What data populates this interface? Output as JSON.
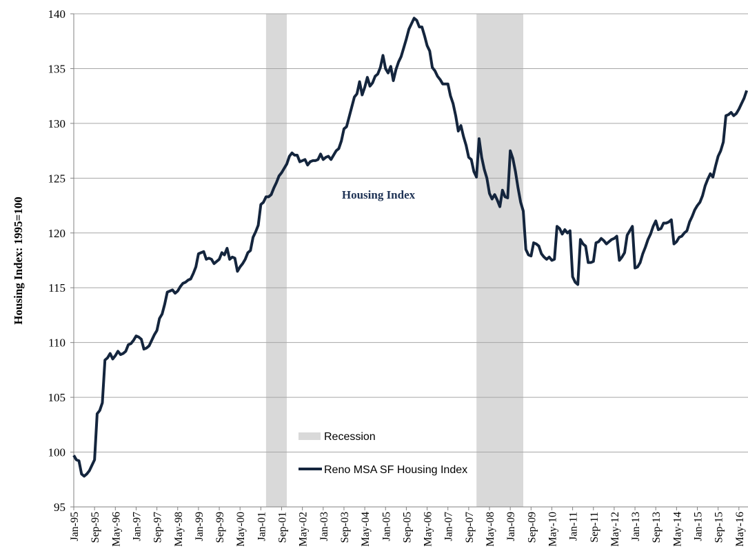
{
  "chart_data": {
    "type": "line",
    "ylabel": "Housing Index: 1995=100",
    "annotation": "Housing Index",
    "categories": [
      "Jan-95",
      null,
      null,
      null,
      null,
      null,
      null,
      null,
      "Sep-95",
      null,
      null,
      null,
      null,
      null,
      null,
      null,
      "May-96",
      null,
      null,
      null,
      null,
      null,
      null,
      null,
      "Jan-97",
      null,
      null,
      null,
      null,
      null,
      null,
      null,
      "Sep-97",
      null,
      null,
      null,
      null,
      null,
      null,
      null,
      "May-98",
      null,
      null,
      null,
      null,
      null,
      null,
      null,
      "Jan-99",
      null,
      null,
      null,
      null,
      null,
      null,
      null,
      "Sep-99",
      null,
      null,
      null,
      null,
      null,
      null,
      null,
      "May-00",
      null,
      null,
      null,
      null,
      null,
      null,
      null,
      "Jan-01",
      null,
      null,
      null,
      null,
      null,
      null,
      null,
      "Sep-01",
      null,
      null,
      null,
      null,
      null,
      null,
      null,
      "May-02",
      null,
      null,
      null,
      null,
      null,
      null,
      null,
      "Jan-03",
      null,
      null,
      null,
      null,
      null,
      null,
      null,
      "Sep-03",
      null,
      null,
      null,
      null,
      null,
      null,
      null,
      "May-04",
      null,
      null,
      null,
      null,
      null,
      null,
      null,
      "Jan-05",
      null,
      null,
      null,
      null,
      null,
      null,
      null,
      "Sep-05",
      null,
      null,
      null,
      null,
      null,
      null,
      null,
      "May-06",
      null,
      null,
      null,
      null,
      null,
      null,
      null,
      "Jan-07",
      null,
      null,
      null,
      null,
      null,
      null,
      null,
      "Sep-07",
      null,
      null,
      null,
      null,
      null,
      null,
      null,
      "May-08",
      null,
      null,
      null,
      null,
      null,
      null,
      null,
      "Jan-09",
      null,
      null,
      null,
      null,
      null,
      null,
      null,
      "Sep-09",
      null,
      null,
      null,
      null,
      null,
      null,
      null,
      "May-10",
      null,
      null,
      null,
      null,
      null,
      null,
      null,
      "Jan-11",
      null,
      null,
      null,
      null,
      null,
      null,
      null,
      "Sep-11",
      null,
      null,
      null,
      null,
      null,
      null,
      null,
      "May-12",
      null,
      null,
      null,
      null,
      null,
      null,
      null,
      "Jan-13",
      null,
      null,
      null,
      null,
      null,
      null,
      null,
      "Sep-13",
      null,
      null,
      null,
      null,
      null,
      null,
      null,
      "May-14",
      null,
      null,
      null,
      null,
      null,
      null,
      null,
      "Jan-15",
      null,
      null,
      null,
      null,
      null,
      null,
      null,
      "Sep-15",
      null,
      null,
      null,
      null,
      null,
      null,
      null,
      "May-16",
      null,
      null,
      null
    ],
    "series": [
      {
        "name": "Reno MSA SF Housing Index",
        "color": "#14253d",
        "values": [
          99.7,
          99.3,
          99.2,
          98.0,
          97.8,
          98.0,
          98.3,
          98.8,
          99.3,
          103.5,
          103.8,
          104.5,
          108.4,
          108.6,
          109.0,
          108.5,
          108.8,
          109.2,
          108.9,
          109.0,
          109.2,
          109.8,
          109.9,
          110.2,
          110.6,
          110.5,
          110.3,
          109.4,
          109.5,
          109.7,
          110.2,
          110.7,
          111.1,
          112.2,
          112.6,
          113.5,
          114.6,
          114.7,
          114.8,
          114.5,
          114.7,
          115.1,
          115.4,
          115.5,
          115.7,
          115.8,
          116.3,
          116.9,
          118.1,
          118.2,
          118.3,
          117.6,
          117.7,
          117.6,
          117.2,
          117.4,
          117.6,
          118.2,
          118.0,
          118.6,
          117.6,
          117.8,
          117.7,
          116.5,
          116.9,
          117.2,
          117.6,
          118.2,
          118.4,
          119.6,
          120.1,
          120.7,
          122.6,
          122.8,
          123.3,
          123.3,
          123.5,
          124.1,
          124.6,
          125.2,
          125.5,
          125.9,
          126.3,
          127.0,
          127.3,
          127.1,
          127.1,
          126.5,
          126.6,
          126.7,
          126.2,
          126.5,
          126.6,
          126.6,
          126.7,
          127.2,
          126.7,
          126.9,
          127.0,
          126.7,
          127.1,
          127.5,
          127.7,
          128.4,
          129.5,
          129.7,
          130.6,
          131.5,
          132.4,
          132.7,
          133.8,
          132.6,
          133.3,
          134.2,
          133.4,
          133.7,
          134.3,
          134.5,
          135.1,
          136.2,
          135.0,
          134.6,
          135.2,
          133.9,
          134.9,
          135.6,
          136.1,
          136.9,
          137.7,
          138.6,
          139.1,
          139.6,
          139.4,
          138.8,
          138.8,
          138.0,
          137.1,
          136.6,
          135.1,
          134.8,
          134.3,
          134.0,
          133.6,
          133.6,
          133.6,
          132.5,
          131.8,
          130.7,
          129.3,
          129.8,
          128.8,
          128.0,
          126.9,
          126.7,
          125.6,
          125.1,
          128.6,
          126.9,
          125.8,
          125.0,
          123.6,
          123.1,
          123.5,
          123.0,
          122.4,
          123.9,
          123.3,
          123.2,
          127.5,
          126.8,
          125.6,
          124.1,
          122.8,
          122.0,
          118.5,
          118.0,
          117.9,
          119.1,
          119.0,
          118.8,
          118.1,
          117.8,
          117.6,
          117.8,
          117.5,
          117.6,
          120.6,
          120.4,
          119.9,
          120.3,
          120.0,
          120.2,
          116.0,
          115.5,
          115.3,
          119.4,
          119.0,
          118.8,
          117.3,
          117.3,
          117.4,
          119.1,
          119.2,
          119.5,
          119.3,
          119.0,
          119.2,
          119.4,
          119.5,
          119.7,
          117.5,
          117.8,
          118.2,
          119.8,
          120.2,
          120.6,
          116.8,
          116.9,
          117.3,
          118.1,
          118.7,
          119.4,
          119.9,
          120.6,
          121.1,
          120.3,
          120.4,
          120.9,
          120.9,
          121.0,
          121.2,
          119.0,
          119.2,
          119.6,
          119.7,
          120.0,
          120.2,
          121.0,
          121.5,
          122.1,
          122.5,
          122.8,
          123.4,
          124.3,
          124.9,
          125.4,
          125.1,
          126.1,
          127.0,
          127.5,
          128.3,
          130.7,
          130.8,
          131.0,
          130.7,
          130.9,
          131.3,
          131.8,
          132.3,
          133.0
        ]
      }
    ],
    "shaded_regions": {
      "name": "Recession",
      "color": "#d9d9d9",
      "ranges": [
        [
          74,
          82
        ],
        [
          155,
          173
        ]
      ]
    },
    "ylim": [
      95,
      140
    ],
    "yticks": [
      95,
      100,
      105,
      110,
      115,
      120,
      125,
      130,
      135,
      140
    ],
    "grid": true
  }
}
